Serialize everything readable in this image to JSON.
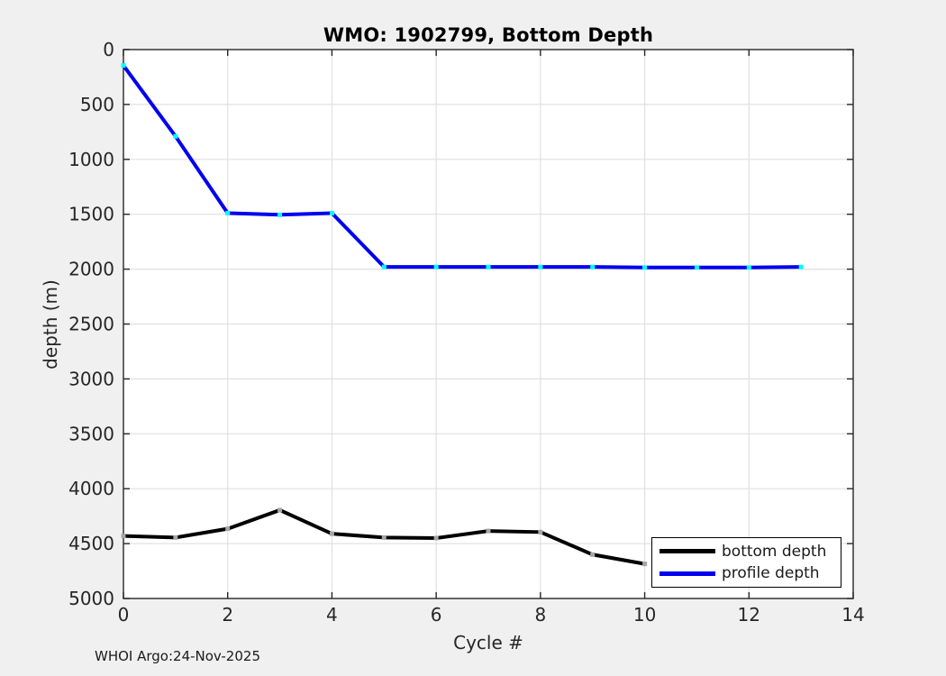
{
  "title": "WMO: 1902799, Bottom Depth",
  "footer": "WHOI Argo:24-Nov-2025",
  "colors": {
    "figure_bg": "#f0f0f0",
    "plot_bg": "#ffffff",
    "grid": "#e0e0e0",
    "axis": "#262626",
    "tick_label": "#262626",
    "bottom_depth_line": "#000000",
    "bottom_depth_marker": "#a6a6a6",
    "profile_depth_line": "#0000f0",
    "profile_depth_marker": "#00ffff"
  },
  "chart_data": {
    "type": "line",
    "title": "WMO: 1902799, Bottom Depth",
    "xlabel": "Cycle #",
    "ylabel": "depth (m)",
    "xlim": [
      0,
      14
    ],
    "ylim": [
      0,
      5000
    ],
    "y_axis_reversed": true,
    "grid": true,
    "xticks": [
      0,
      2,
      4,
      6,
      8,
      10,
      12,
      14
    ],
    "yticks": [
      0,
      500,
      1000,
      1500,
      2000,
      2500,
      3000,
      3500,
      4000,
      4500,
      5000
    ],
    "legend_position": "bottom-right",
    "series": [
      {
        "name": "bottom depth",
        "color": "#000000",
        "marker": "square",
        "marker_color": "#a6a6a6",
        "x": [
          0,
          1,
          2,
          3,
          4,
          5,
          6,
          7,
          8,
          9,
          10
        ],
        "y": [
          4430,
          4445,
          4365,
          4195,
          4410,
          4445,
          4450,
          4385,
          4395,
          4600,
          4685
        ]
      },
      {
        "name": "profile depth",
        "color": "#0000f0",
        "marker": "square",
        "marker_color": "#00ffff",
        "x": [
          0,
          1,
          2,
          3,
          4,
          5,
          6,
          7,
          8,
          9,
          10,
          11,
          12,
          13
        ],
        "y": [
          145,
          790,
          1490,
          1505,
          1490,
          1980,
          1980,
          1980,
          1980,
          1980,
          1985,
          1985,
          1985,
          1980
        ]
      }
    ]
  }
}
